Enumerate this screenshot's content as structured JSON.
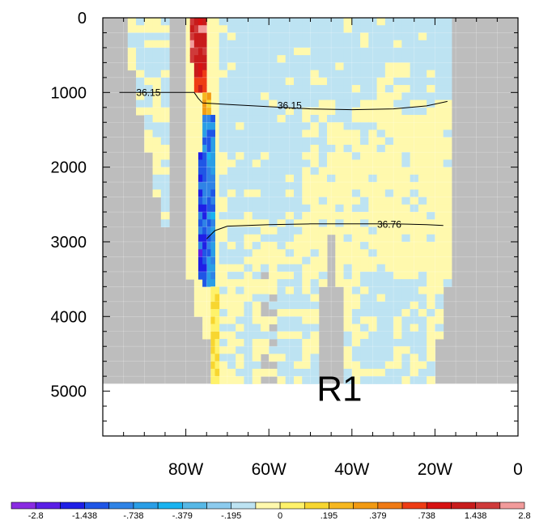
{
  "chart_data": {
    "type": "heatmap",
    "title": "",
    "xlabel": "",
    "ylabel": "",
    "panel_label": "R1",
    "x_axis": {
      "lim": [
        -100,
        0
      ],
      "tick_values": [
        -80,
        -60,
        -40,
        -20,
        0
      ],
      "tick_labels": [
        "80W",
        "60W",
        "40W",
        "20W",
        "0"
      ],
      "minor_step": 5
    },
    "y_axis": {
      "lim": [
        5600,
        0
      ],
      "inverted": true,
      "tick_values": [
        0,
        1000,
        2000,
        3000,
        4000,
        5000
      ],
      "tick_labels": [
        "0",
        "1000",
        "2000",
        "3000",
        "4000",
        "5000"
      ],
      "minor_step": 200
    },
    "grid": true,
    "bottom_depth": 4900,
    "colors": {
      "land": "#bdbdbd",
      "neg_light": "#bde3f2",
      "neg_mid": "#57b8e6",
      "neg_strong": "#2f83e6",
      "neg_deep": "#1f56e6",
      "pos_light": "#fff9ad",
      "pos_mid": "#f7d630",
      "pos_strong": "#f29a12",
      "pos_deep": "#d71212",
      "contour": "#000000"
    },
    "regions": {
      "ocean_west_edge": [
        [
          0,
          -95
        ],
        [
          1000,
          -92
        ],
        [
          2000,
          -88
        ],
        [
          2700,
          -86
        ],
        [
          3200,
          -80
        ],
        [
          3800,
          -78
        ],
        [
          4300,
          -75
        ],
        [
          4900,
          -74
        ]
      ],
      "ocean_east_edge": [
        [
          0,
          -15
        ],
        [
          500,
          -16
        ],
        [
          1000,
          -16
        ],
        [
          2000,
          -16
        ],
        [
          3000,
          -17
        ],
        [
          3600,
          -17
        ],
        [
          4000,
          -18
        ],
        [
          4500,
          -20
        ],
        [
          4900,
          -20
        ]
      ],
      "ridge_west": [
        [
          0,
          -84
        ],
        [
          2000,
          -84
        ],
        [
          4900,
          -83
        ]
      ],
      "ridge_east": [
        [
          0,
          -80
        ],
        [
          2000,
          -80
        ],
        [
          4900,
          -79
        ]
      ],
      "seamount_x": [
        -48,
        -42
      ],
      "seamount_top": 2900
    },
    "anomaly_cells": [
      {
        "lon": [
          -79,
          -75
        ],
        "depth": [
          0,
          600
        ],
        "value": 2.5
      },
      {
        "lon": [
          -78,
          -75
        ],
        "depth": [
          600,
          1000
        ],
        "value": 1.2
      },
      {
        "lon": [
          -76,
          -74
        ],
        "depth": [
          1000,
          1300
        ],
        "value": 0.4
      },
      {
        "lon": [
          -76,
          -73
        ],
        "depth": [
          1300,
          3600
        ],
        "value": -0.6
      },
      {
        "lon": [
          -77,
          -75
        ],
        "depth": [
          1800,
          3500
        ],
        "value": -1.0
      },
      {
        "lon": [
          -74,
          -72
        ],
        "depth": [
          3600,
          4900
        ],
        "value": 0.2
      }
    ],
    "contours": [
      {
        "label": "36.15",
        "label_lon": -89,
        "label_depth": 1000,
        "points": [
          [
            -96,
            1000
          ],
          [
            -80,
            1000
          ],
          [
            -78,
            1000
          ],
          [
            -77,
            1080
          ],
          [
            -76,
            1140
          ],
          [
            -70,
            1160
          ],
          [
            -60,
            1190
          ],
          [
            -50,
            1220
          ],
          [
            -40,
            1230
          ],
          [
            -30,
            1220
          ],
          [
            -22,
            1180
          ],
          [
            -17,
            1120
          ]
        ]
      },
      {
        "label": "36.15",
        "label_lon": -55,
        "label_depth": 1175,
        "points": []
      },
      {
        "label": "36.76",
        "label_lon": -31,
        "label_depth": 2770,
        "points": [
          [
            -75,
            2960
          ],
          [
            -73,
            2850
          ],
          [
            -70,
            2790
          ],
          [
            -60,
            2770
          ],
          [
            -50,
            2760
          ],
          [
            -40,
            2760
          ],
          [
            -30,
            2760
          ],
          [
            -22,
            2770
          ],
          [
            -18,
            2780
          ]
        ]
      }
    ],
    "colorbar": {
      "labels": [
        "-2.8",
        "-1.438",
        "-.738",
        "-.379",
        "-.195",
        "0",
        ".195",
        ".379",
        ".738",
        "1.438",
        "2.8"
      ],
      "boundaries": [
        -2.8,
        -2.1,
        -1.438,
        -1.088,
        -0.738,
        -0.559,
        -0.379,
        -0.287,
        -0.195,
        -0.098,
        0,
        0.098,
        0.195,
        0.287,
        0.379,
        0.559,
        0.738,
        1.088,
        1.438,
        2.1,
        2.8
      ],
      "colors": [
        "#8a2be2",
        "#5a1fe6",
        "#1f1fe6",
        "#1f56e6",
        "#2f83e6",
        "#2a9ee6",
        "#1ab3f0",
        "#57b8e6",
        "#8ccbee",
        "#bde3f2",
        "#fff9ad",
        "#fff26a",
        "#f7d630",
        "#f6b71f",
        "#f29a12",
        "#f07a14",
        "#ee3c14",
        "#d71212",
        "#c81b1b",
        "#cf3a3a",
        "#f29b9b"
      ]
    }
  }
}
